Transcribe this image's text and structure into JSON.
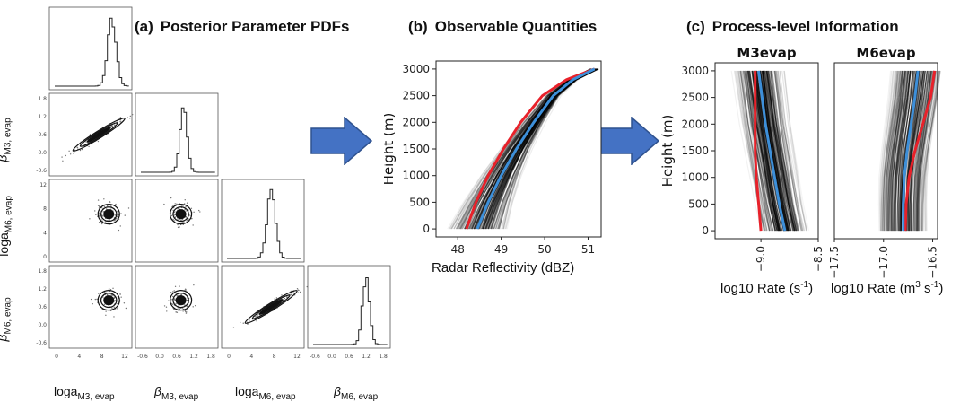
{
  "panels": {
    "a": {
      "tag": "(a)",
      "title": "Posterior Parameter PDFs"
    },
    "b": {
      "tag": "(b)",
      "title": "Observable Quantities"
    },
    "c": {
      "tag": "(c)",
      "title": "Process-level Information"
    }
  },
  "corner": {
    "params": [
      {
        "base": "loga",
        "sub": "M3, evap"
      },
      {
        "base": "β",
        "sub": "M3, evap"
      },
      {
        "base": "loga",
        "sub": "M6, evap"
      },
      {
        "base": "β",
        "sub": "M6, evap"
      }
    ],
    "ticks": [
      [
        "0",
        "4",
        "8",
        "12"
      ],
      [
        "-0.6",
        "0.0",
        "0.6",
        "1.2",
        "1.8"
      ],
      [
        "0",
        "4",
        "8",
        "12"
      ],
      [
        "-0.6",
        "0.0",
        "0.6",
        "1.2",
        "1.8"
      ]
    ],
    "yticks": [
      [],
      [
        "1.8",
        "1.2",
        "0.6",
        "0.0",
        "-0.6"
      ],
      [
        "12",
        "8",
        "4",
        "0"
      ],
      [
        "1.8",
        "1.2",
        "0.6",
        "0.0",
        "-0.6"
      ]
    ]
  },
  "colors": {
    "red": "#e8212a",
    "blue": "#3d8fd9",
    "arrow": "#4472c4",
    "arrow_edge": "#2f528f"
  },
  "chart_data": [
    {
      "type": "line",
      "title": "",
      "xlabel": "Radar Reflectivity (dBZ)",
      "ylabel": "Height (m)",
      "xlim": [
        47.5,
        51.3
      ],
      "ylim": [
        -150,
        3150
      ],
      "xticks": [
        "48",
        "49",
        "50",
        "51"
      ],
      "yticks": [
        "0",
        "500",
        "1000",
        "1500",
        "2000",
        "2500",
        "3000"
      ],
      "series": [
        {
          "color": "red",
          "x": [
            48.2,
            48.42,
            48.7,
            49.05,
            49.45,
            49.95,
            50.5,
            51.15
          ],
          "y": [
            0,
            500,
            1000,
            1500,
            2000,
            2500,
            2800,
            3000
          ]
        },
        {
          "color": "blue",
          "x": [
            48.45,
            48.7,
            49.0,
            49.35,
            49.75,
            50.2,
            50.65,
            51.15
          ],
          "y": [
            0,
            500,
            1000,
            1500,
            2000,
            2500,
            2800,
            3000
          ]
        }
      ]
    },
    {
      "type": "line",
      "title": "M3evap",
      "xlabel": "log10 Rate (s⁻¹)",
      "ylabel": "Height (m)",
      "xlim": [
        -9.4,
        -8.5
      ],
      "ylim": [
        -150,
        3150
      ],
      "xticks": [
        "-9.0",
        "-8.5"
      ],
      "yticks": [
        "0",
        "500",
        "1000",
        "1500",
        "2000",
        "2500",
        "3000"
      ],
      "series": [
        {
          "color": "red",
          "x": [
            -9.0,
            -9.02,
            -9.04,
            -9.05,
            -9.05,
            -9.05,
            -9.05
          ],
          "y": [
            0,
            500,
            1000,
            1500,
            2000,
            2500,
            3000
          ]
        },
        {
          "color": "blue",
          "x": [
            -8.79,
            -8.84,
            -8.88,
            -8.92,
            -8.96,
            -8.99,
            -9.02
          ],
          "y": [
            0,
            500,
            1000,
            1500,
            2000,
            2500,
            3000
          ]
        }
      ]
    },
    {
      "type": "line",
      "title": "M6evap",
      "xlabel": "log10 Rate (m³ s⁻¹)",
      "ylabel": "",
      "xlim": [
        -17.5,
        -16.45
      ],
      "ylim": [
        -150,
        3150
      ],
      "xticks": [
        "-17.5",
        "-17.0",
        "-16.5"
      ],
      "yticks": [],
      "series": [
        {
          "color": "red",
          "x": [
            -16.78,
            -16.77,
            -16.74,
            -16.68,
            -16.6,
            -16.52,
            -16.48
          ],
          "y": [
            0,
            500,
            1000,
            1500,
            2000,
            2500,
            3000
          ]
        },
        {
          "color": "blue",
          "x": [
            -16.8,
            -16.8,
            -16.79,
            -16.76,
            -16.72,
            -16.68,
            -16.65
          ],
          "y": [
            0,
            500,
            1000,
            1500,
            2000,
            2500,
            3000
          ]
        }
      ]
    }
  ]
}
